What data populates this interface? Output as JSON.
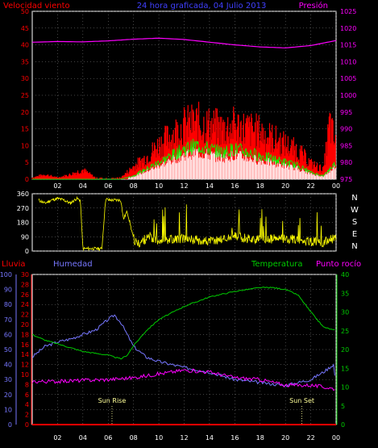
{
  "colors": {
    "background": "#000000",
    "frame": "#ffffff",
    "grid": "#888888",
    "wind_avg": "#00ff00",
    "wind_gust": "#ff0000",
    "wind_fill": "#ffffff",
    "pressure": "#ff00ff",
    "direction": "#ffff00",
    "humidity": "#7777ff",
    "temperature": "#00cc00",
    "dewpoint": "#ff00ff",
    "rain": "#ff0000",
    "sun": "#ffff99"
  },
  "panel1": {
    "title": "24 hora graficada, 04 Julio 2013",
    "left_title": "Velocidad viento",
    "right_title": "Presión"
  },
  "panel2": {
    "compass": [
      "N",
      "W",
      "S",
      "E",
      "N"
    ]
  },
  "panel3": {
    "label_rain": "Lluvia",
    "label_humidity": "Humedad",
    "label_temperature": "Temperatura",
    "label_dewpoint": "Punto rocío",
    "sunrise_label": "Sun Rise",
    "sunset_label": "Sun Set"
  },
  "chart_data": [
    {
      "type": "line",
      "title": "24 hora graficada, 04 Julio 2013",
      "x_ticks": [
        "02",
        "04",
        "06",
        "08",
        "10",
        "12",
        "14",
        "16",
        "18",
        "20",
        "22",
        "00"
      ],
      "xlim": [
        0,
        24
      ],
      "y_left": {
        "label": "Velocidad viento",
        "range": [
          0,
          50
        ],
        "ticks": [
          0,
          5,
          10,
          15,
          20,
          25,
          30,
          35,
          40,
          45,
          50
        ]
      },
      "y_right": {
        "label": "Presión",
        "range": [
          975,
          1025
        ],
        "ticks": [
          975,
          980,
          985,
          990,
          995,
          1000,
          1005,
          1010,
          1015,
          1020,
          1025
        ]
      },
      "series": [
        {
          "name": "Presión",
          "axis": "right",
          "x": [
            0,
            2,
            4,
            6,
            8,
            10,
            12,
            14,
            16,
            18,
            20,
            22,
            24
          ],
          "values": [
            1015.8,
            1016,
            1015.9,
            1016.2,
            1016.7,
            1017,
            1016.6,
            1015.8,
            1015,
            1014.4,
            1014.1,
            1014.8,
            1016.3
          ]
        },
        {
          "name": "gust",
          "axis": "left",
          "x": [
            0,
            1,
            2,
            3,
            4,
            5,
            6,
            7,
            8,
            9,
            10,
            11,
            12,
            13,
            14,
            15,
            16,
            17,
            18,
            19,
            20,
            21,
            22,
            23,
            23.5,
            24
          ],
          "values": [
            0.5,
            1.5,
            0.5,
            1.5,
            3,
            0.5,
            0.3,
            0.5,
            4,
            7,
            11,
            14,
            17,
            18,
            17,
            16,
            17,
            16,
            15,
            13,
            11,
            9,
            5,
            3,
            18,
            10
          ]
        },
        {
          "name": "average",
          "axis": "left",
          "x": [
            0,
            4,
            7,
            8,
            9,
            10,
            11,
            12,
            13,
            14,
            15,
            16,
            17,
            18,
            19,
            20,
            21,
            22,
            23,
            24
          ],
          "values": [
            0,
            0,
            0,
            1,
            3,
            5,
            7,
            9,
            10,
            9,
            8,
            9,
            8,
            7,
            6,
            5,
            4,
            2,
            1,
            5
          ]
        }
      ]
    },
    {
      "type": "line",
      "title": "",
      "x_ticks": [
        "02",
        "04",
        "06",
        "08",
        "10",
        "12",
        "14",
        "16",
        "18",
        "20",
        "22",
        "00"
      ],
      "xlim": [
        0,
        24
      ],
      "y_left": {
        "label": "",
        "range": [
          0,
          360
        ],
        "ticks": [
          0,
          90,
          180,
          270,
          360
        ]
      },
      "series": [
        {
          "name": "direction",
          "x": [
            0.5,
            1,
            1.5,
            2,
            2.5,
            3,
            3.5,
            3.8,
            4,
            5.5,
            5.8,
            6,
            7,
            7.2,
            7.5,
            8,
            8.3,
            9,
            10,
            12,
            14,
            16,
            18,
            20,
            22,
            23,
            23.5,
            24
          ],
          "values": [
            320,
            300,
            320,
            330,
            320,
            300,
            330,
            320,
            15,
            15,
            330,
            320,
            320,
            200,
            250,
            80,
            40,
            80,
            70,
            80,
            60,
            90,
            70,
            80,
            60,
            50,
            70,
            80
          ]
        }
      ]
    },
    {
      "type": "line",
      "title": "",
      "x_ticks": [
        "02",
        "04",
        "06",
        "08",
        "10",
        "12",
        "14",
        "16",
        "18",
        "20",
        "22",
        "00"
      ],
      "xlim": [
        0,
        24
      ],
      "y_axes": [
        {
          "label": "Lluvia",
          "range": [
            0,
            30
          ],
          "ticks": [
            0,
            2,
            4,
            6,
            8,
            10,
            12,
            14,
            16,
            18,
            20,
            22,
            24,
            26,
            28,
            30
          ]
        },
        {
          "label": "Humedad",
          "range": [
            0,
            100
          ],
          "ticks": [
            0,
            10,
            20,
            30,
            40,
            50,
            60,
            70,
            80,
            90,
            100
          ]
        },
        {
          "label": "Temperatura",
          "range": [
            0,
            40
          ],
          "ticks": [
            0,
            5,
            10,
            15,
            20,
            25,
            30,
            35,
            40
          ]
        }
      ],
      "series": [
        {
          "name": "Humedad",
          "axis": "humidity",
          "x": [
            0,
            1,
            2,
            3,
            4,
            5,
            6,
            6.5,
            7,
            8,
            9,
            10,
            12,
            14,
            16,
            18,
            20,
            22,
            23,
            23.8,
            24
          ],
          "values": [
            45,
            52,
            55,
            57,
            60,
            63,
            70,
            73,
            68,
            52,
            45,
            42,
            38,
            35,
            30,
            28,
            26,
            30,
            35,
            40,
            25
          ]
        },
        {
          "name": "Temperatura",
          "axis": "temperature",
          "x": [
            0,
            1,
            2,
            3,
            4,
            5,
            6,
            7,
            7.5,
            8,
            9,
            10,
            12,
            14,
            16,
            18,
            19,
            20,
            21,
            22,
            23,
            24
          ],
          "values": [
            24,
            22.5,
            21.5,
            20.5,
            19.5,
            19,
            18.5,
            17.5,
            18.5,
            21,
            25,
            28,
            31.5,
            34,
            35.5,
            36.5,
            36.5,
            36,
            34.5,
            30,
            26,
            25
          ]
        },
        {
          "name": "Punto rocío",
          "axis": "temperature",
          "x": [
            0,
            2,
            4,
            6,
            8,
            10,
            12,
            14,
            16,
            18,
            20,
            22,
            24
          ],
          "values": [
            11.5,
            11.5,
            11.8,
            12,
            12.5,
            13.5,
            14.5,
            14,
            12.5,
            12,
            10.5,
            10.5,
            9.5
          ]
        },
        {
          "name": "Lluvia",
          "axis": "rain",
          "x": [
            0,
            24
          ],
          "values": [
            0,
            0
          ]
        }
      ],
      "annotations": [
        {
          "text": "Sun Rise",
          "x": 6.3
        },
        {
          "text": "Sun Set",
          "x": 21.3
        }
      ]
    }
  ]
}
